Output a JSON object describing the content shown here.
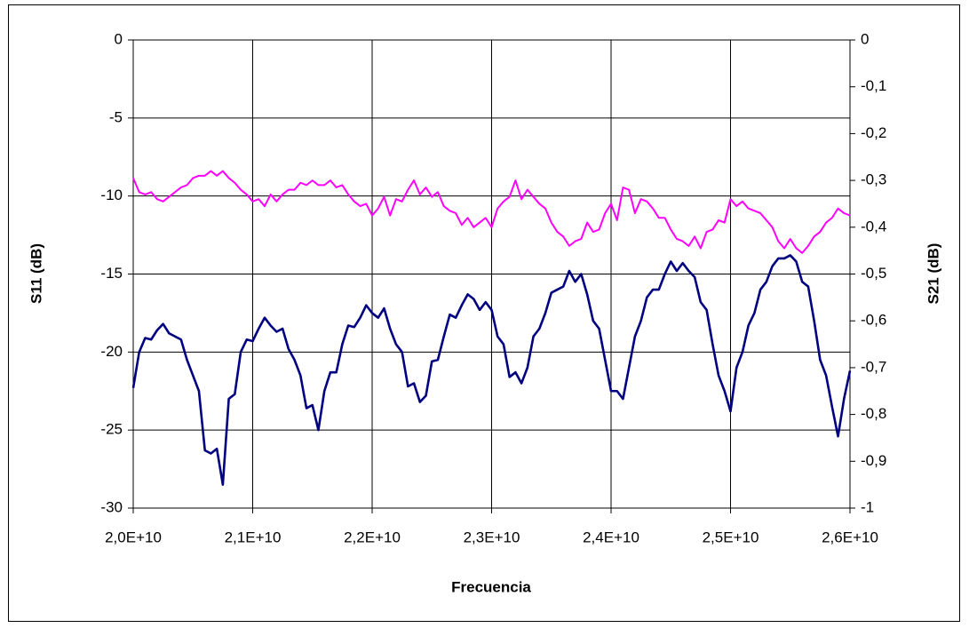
{
  "chart_data": {
    "type": "line",
    "x_label": "Frecuencia",
    "y_label": "S11 (dB)",
    "y2_label": "S21 (dB)",
    "x": [
      20000000000.0,
      20050000000.0,
      20100000000.0,
      20150000000.0,
      20200000000.0,
      20250000000.0,
      20300000000.0,
      20350000000.0,
      20400000000.0,
      20450000000.0,
      20500000000.0,
      20550000000.0,
      20600000000.0,
      20650000000.0,
      20700000000.0,
      20750000000.0,
      20800000000.0,
      20850000000.0,
      20900000000.0,
      20950000000.0,
      21000000000.0,
      21050000000.0,
      21100000000.0,
      21150000000.0,
      21200000000.0,
      21250000000.0,
      21300000000.0,
      21350000000.0,
      21400000000.0,
      21450000000.0,
      21500000000.0,
      21550000000.0,
      21600000000.0,
      21650000000.0,
      21700000000.0,
      21750000000.0,
      21800000000.0,
      21850000000.0,
      21900000000.0,
      21950000000.0,
      22000000000.0,
      22050000000.0,
      22100000000.0,
      22150000000.0,
      22200000000.0,
      22250000000.0,
      22300000000.0,
      22350000000.0,
      22400000000.0,
      22450000000.0,
      22500000000.0,
      22550000000.0,
      22600000000.0,
      22650000000.0,
      22700000000.0,
      22750000000.0,
      22800000000.0,
      22850000000.0,
      22900000000.0,
      22950000000.0,
      23000000000.0,
      23050000000.0,
      23100000000.0,
      23150000000.0,
      23200000000.0,
      23250000000.0,
      23300000000.0,
      23350000000.0,
      23400000000.0,
      23450000000.0,
      23500000000.0,
      23550000000.0,
      23600000000.0,
      23650000000.0,
      23700000000.0,
      23750000000.0,
      23800000000.0,
      23850000000.0,
      23900000000.0,
      23950000000.0,
      24000000000.0,
      24050000000.0,
      24100000000.0,
      24150000000.0,
      24200000000.0,
      24250000000.0,
      24300000000.0,
      24350000000.0,
      24400000000.0,
      24450000000.0,
      24500000000.0,
      24550000000.0,
      24600000000.0,
      24650000000.0,
      24700000000.0,
      24750000000.0,
      24800000000.0,
      24850000000.0,
      24900000000.0,
      24950000000.0,
      25000000000.0,
      25050000000.0,
      25100000000.0,
      25150000000.0,
      25200000000.0,
      25250000000.0,
      25300000000.0,
      25350000000.0,
      25400000000.0,
      25450000000.0,
      25500000000.0,
      25550000000.0,
      25600000000.0,
      25650000000.0,
      25700000000.0,
      25750000000.0,
      25800000000.0,
      25850000000.0,
      25900000000.0,
      25950000000.0,
      26000000000.0
    ],
    "series": [
      {
        "color": "#000080",
        "axis": "y",
        "values": [
          -22.3,
          -20,
          -19.1,
          -19.2,
          -18.6,
          -18.2,
          -18.8,
          -19,
          -19.2,
          -20.5,
          -21.5,
          -22.5,
          -26.3,
          -26.5,
          -26.2,
          -28.5,
          -23,
          -22.7,
          -20,
          -19.2,
          -19.3,
          -18.5,
          -17.8,
          -18.3,
          -18.7,
          -18.5,
          -19.8,
          -20.5,
          -21.5,
          -23.6,
          -23.4,
          -25,
          -22.5,
          -21.3,
          -21.3,
          -19.5,
          -18.3,
          -18.4,
          -17.8,
          -17,
          -17.5,
          -17.8,
          -17.2,
          -18.5,
          -19.5,
          -20,
          -22.2,
          -22,
          -23.2,
          -22.8,
          -20.6,
          -20.5,
          -19,
          -17.6,
          -17.8,
          -17,
          -16.3,
          -16.6,
          -17.3,
          -16.8,
          -17.3,
          -19,
          -19.5,
          -21.6,
          -21.3,
          -22,
          -21,
          -19,
          -18.5,
          -17.5,
          -16.2,
          -16,
          -15.8,
          -14.8,
          -15.5,
          -15,
          -16.3,
          -18,
          -18.5,
          -20.5,
          -22.5,
          -22.5,
          -23,
          -21,
          -19,
          -18,
          -16.5,
          -16,
          -16,
          -15,
          -14.2,
          -14.8,
          -14.3,
          -14.8,
          -15.2,
          -16.8,
          -17.3,
          -19.5,
          -21.5,
          -22.5,
          -23.8,
          -21,
          -20,
          -18.3,
          -17.5,
          -16,
          -15.5,
          -14.5,
          -14,
          -14,
          -13.8,
          -14.2,
          -15.5,
          -15.8,
          -18,
          -20.5,
          -21.5,
          -23.5,
          -25.4,
          -23,
          -21.2
        ]
      },
      {
        "color": "#ff00ff",
        "axis": "y2",
        "values": [
          -0.295,
          -0.325,
          -0.33,
          -0.325,
          -0.34,
          -0.345,
          -0.335,
          -0.325,
          -0.315,
          -0.31,
          -0.295,
          -0.29,
          -0.29,
          -0.28,
          -0.29,
          -0.28,
          -0.295,
          -0.305,
          -0.32,
          -0.33,
          -0.345,
          -0.34,
          -0.355,
          -0.33,
          -0.345,
          -0.33,
          -0.32,
          -0.32,
          -0.305,
          -0.31,
          -0.3,
          -0.31,
          -0.31,
          -0.3,
          -0.315,
          -0.31,
          -0.33,
          -0.345,
          -0.355,
          -0.35,
          -0.375,
          -0.36,
          -0.335,
          -0.375,
          -0.34,
          -0.345,
          -0.32,
          -0.3,
          -0.33,
          -0.315,
          -0.335,
          -0.325,
          -0.355,
          -0.365,
          -0.37,
          -0.395,
          -0.38,
          -0.4,
          -0.39,
          -0.38,
          -0.4,
          -0.36,
          -0.345,
          -0.335,
          -0.3,
          -0.34,
          -0.32,
          -0.335,
          -0.35,
          -0.36,
          -0.39,
          -0.41,
          -0.42,
          -0.44,
          -0.43,
          -0.425,
          -0.39,
          -0.41,
          -0.405,
          -0.37,
          -0.35,
          -0.385,
          -0.315,
          -0.32,
          -0.37,
          -0.34,
          -0.345,
          -0.36,
          -0.38,
          -0.38,
          -0.405,
          -0.425,
          -0.43,
          -0.44,
          -0.42,
          -0.445,
          -0.41,
          -0.405,
          -0.385,
          -0.39,
          -0.34,
          -0.355,
          -0.345,
          -0.36,
          -0.365,
          -0.37,
          -0.385,
          -0.4,
          -0.43,
          -0.445,
          -0.425,
          -0.445,
          -0.455,
          -0.44,
          -0.42,
          -0.41,
          -0.39,
          -0.38,
          -0.36,
          -0.37,
          -0.375
        ]
      }
    ],
    "xlim": [
      20000000000.0,
      26000000000.0
    ],
    "xticks": [
      {
        "value": 20000000000.0,
        "label": "2,0E+10"
      },
      {
        "value": 21000000000.0,
        "label": "2,1E+10"
      },
      {
        "value": 22000000000.0,
        "label": "2,2E+10"
      },
      {
        "value": 23000000000.0,
        "label": "2,3E+10"
      },
      {
        "value": 24000000000.0,
        "label": "2,4E+10"
      },
      {
        "value": 25000000000.0,
        "label": "2,5E+10"
      },
      {
        "value": 26000000000.0,
        "label": "2,6E+10"
      }
    ],
    "ylim": [
      -30,
      0
    ],
    "yticks": [
      0,
      -5,
      -10,
      -15,
      -20,
      -25,
      -30
    ],
    "y2lim": [
      -1,
      0
    ],
    "y2ticks": [
      0,
      {
        "value": -0.1,
        "label": "-0,1"
      },
      {
        "value": -0.2,
        "label": "-0,2"
      },
      {
        "value": -0.3,
        "label": "-0,3"
      },
      {
        "value": -0.4,
        "label": "-0,4"
      },
      {
        "value": -0.5,
        "label": "-0,5"
      },
      {
        "value": -0.6,
        "label": "-0,6"
      },
      {
        "value": -0.7,
        "label": "-0,7"
      },
      {
        "value": -0.8,
        "label": "-0,8"
      },
      {
        "value": -0.9,
        "label": "-0,9"
      },
      -1
    ],
    "grid": true
  }
}
